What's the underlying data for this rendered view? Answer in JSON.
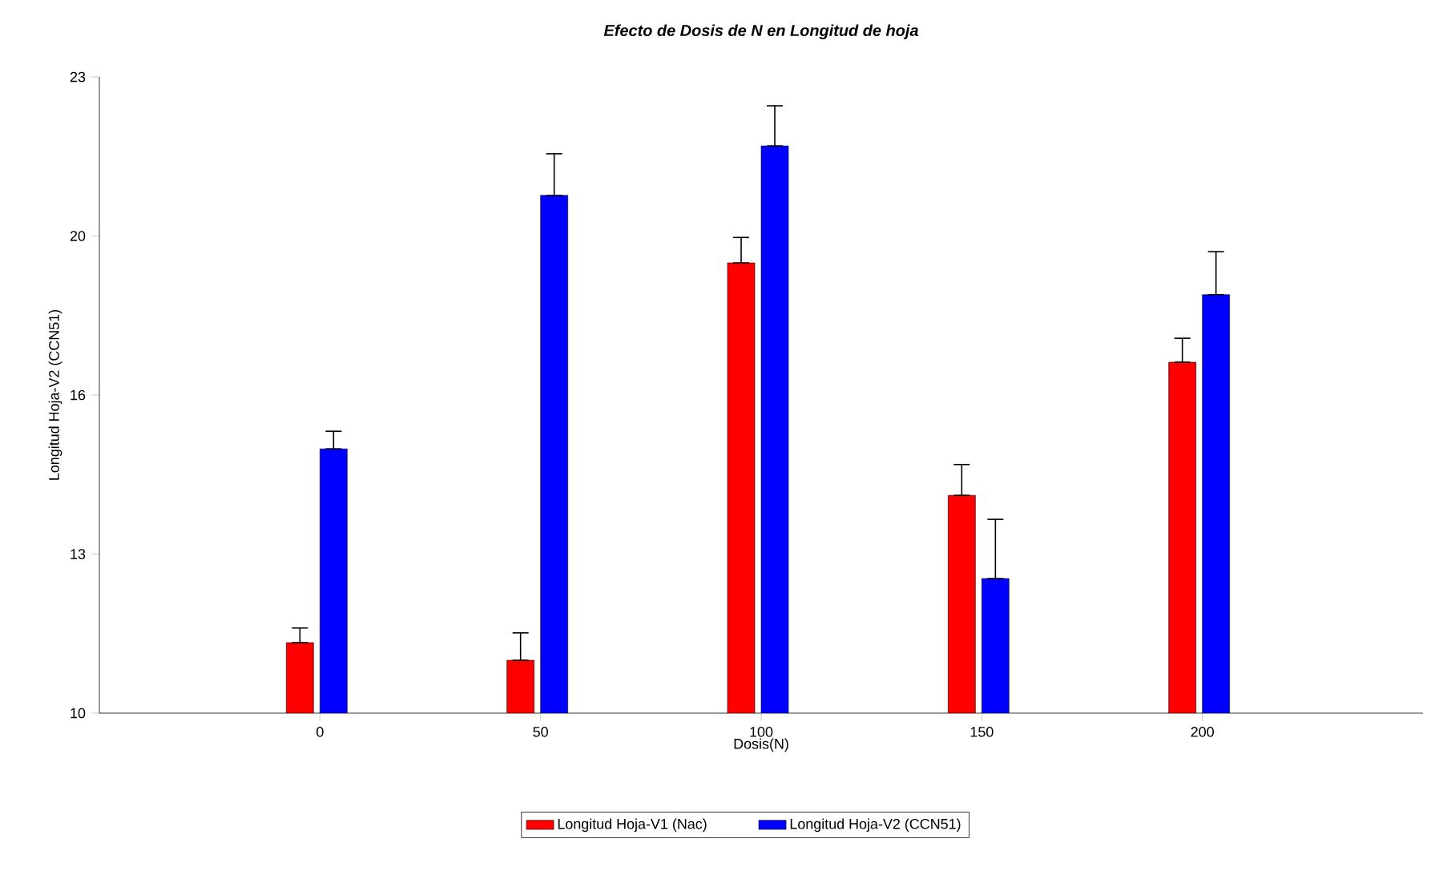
{
  "chart_data": {
    "type": "bar",
    "title": "Efecto de Dosis de N en Longitud de hoja",
    "xlabel": "Dosis(N)",
    "ylabel": "Longitud Hoja-V2 (CCN51)",
    "x": [
      0,
      50,
      100,
      150,
      200
    ],
    "xlim": [
      -50,
      250
    ],
    "xticks": [
      0,
      50,
      100,
      150,
      200
    ],
    "ylim": [
      10,
      23
    ],
    "yticks": [
      {
        "value": 10,
        "label": "10"
      },
      {
        "value": 13.25,
        "label": "13"
      },
      {
        "value": 16.5,
        "label": "16"
      },
      {
        "value": 19.75,
        "label": "20"
      },
      {
        "value": 23,
        "label": "23"
      }
    ],
    "series": [
      {
        "name": "Longitud Hoja-V1 (Nac)",
        "color": "#ff0000",
        "values": [
          11.44,
          11.08,
          19.2,
          14.45,
          17.17
        ],
        "errors": [
          [
            11.44,
            11.74
          ],
          [
            11.08,
            11.64
          ],
          [
            19.2,
            19.72
          ],
          [
            14.45,
            15.08
          ],
          [
            17.17,
            17.66
          ]
        ]
      },
      {
        "name": "Longitud Hoja-V2 (CCN51)",
        "color": "#0000ff",
        "values": [
          15.4,
          20.58,
          21.59,
          12.75,
          18.55
        ],
        "errors": [
          [
            15.4,
            15.76
          ],
          [
            20.58,
            21.43
          ],
          [
            21.59,
            22.41
          ],
          [
            12.75,
            13.96
          ],
          [
            18.55,
            19.43
          ]
        ]
      }
    ],
    "legend": "bottom",
    "grid": false
  }
}
